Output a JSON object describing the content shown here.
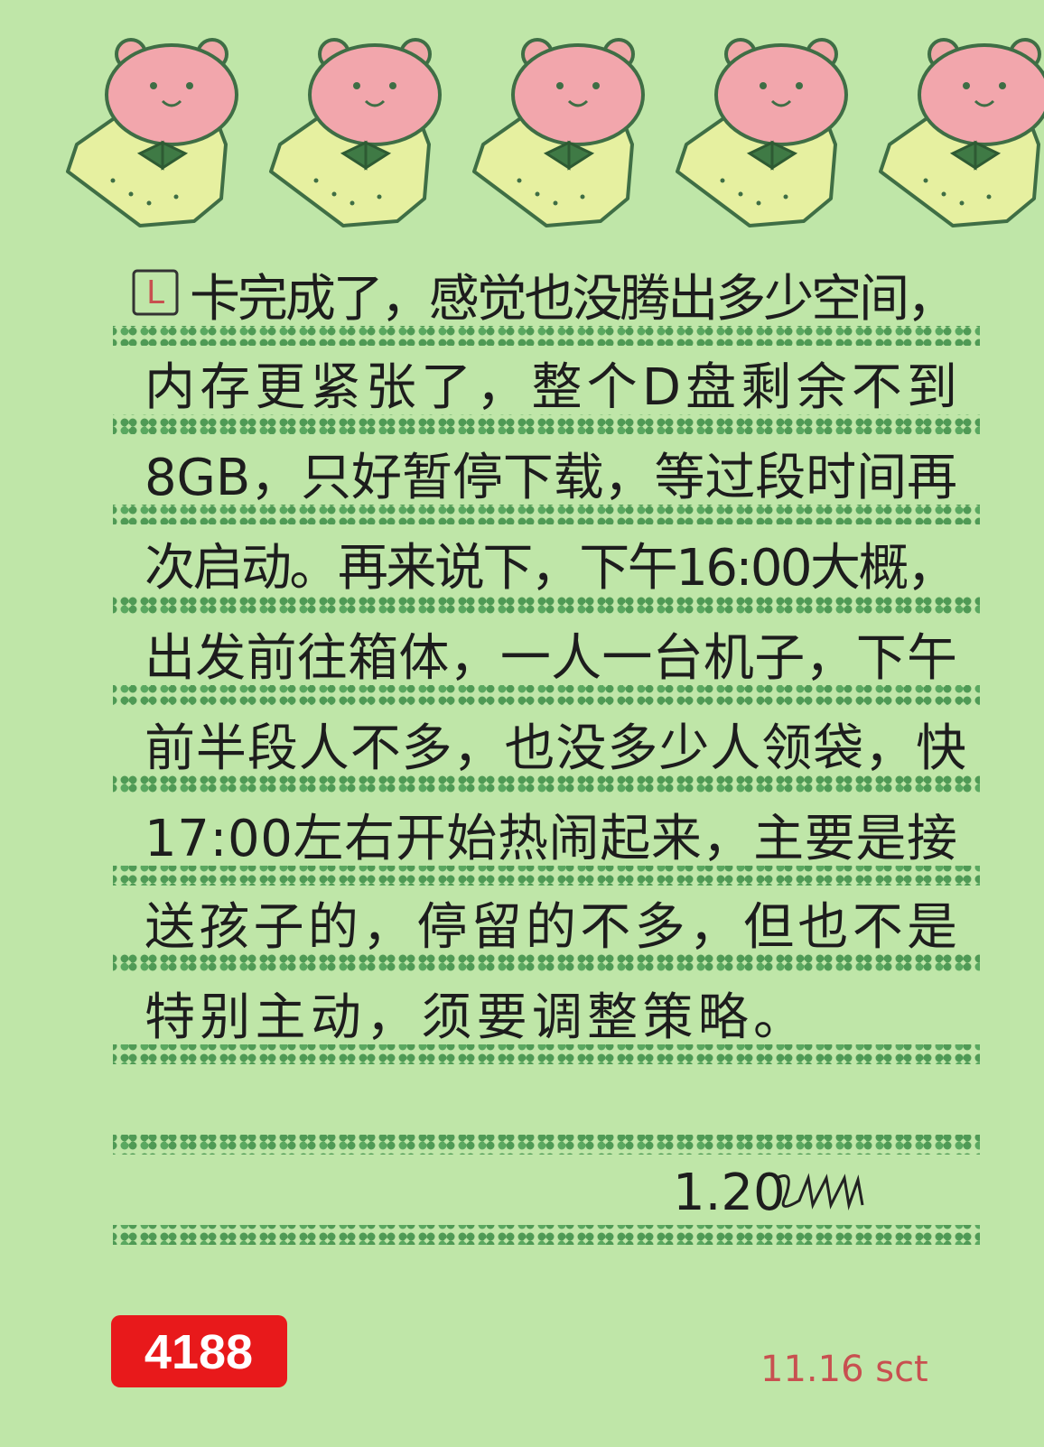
{
  "letter": {
    "marker": "L",
    "lines": [
      "卡完成了，感觉也没腾出多少空间，",
      "内存更紧张了，整个D盘剩余不到",
      "8GB，只好暂停下载，等过段时间再",
      "次启动。再来说下，下午16:00大概，",
      "出发前往箱体，一人一台机子，下午",
      "前半段人不多，也没多少人领袋，快",
      "17:00左右开始热闹起来，主要是接",
      "送孩子的，停留的不多，但也不是",
      "特别主动，须要调整策略。"
    ],
    "signature": "1.20",
    "footer_date": "11.16 sct"
  },
  "badge": "4188"
}
